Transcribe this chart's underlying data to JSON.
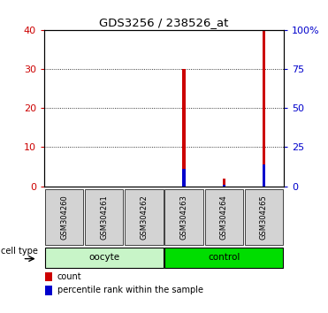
{
  "title": "GDS3256 / 238526_at",
  "samples": [
    "GSM304260",
    "GSM304261",
    "GSM304262",
    "GSM304263",
    "GSM304264",
    "GSM304265"
  ],
  "count_values": [
    0,
    0,
    0,
    30,
    2,
    40
  ],
  "percentile_values": [
    0,
    0,
    0,
    11,
    1,
    14
  ],
  "ylim_left": [
    0,
    40
  ],
  "ylim_right": [
    0,
    100
  ],
  "yticks_left": [
    0,
    10,
    20,
    30,
    40
  ],
  "yticks_right": [
    0,
    25,
    50,
    75,
    100
  ],
  "yticklabels_right": [
    "0",
    "25",
    "50",
    "75",
    "100%"
  ],
  "groups": [
    {
      "label": "oocyte",
      "indices": [
        0,
        1,
        2
      ],
      "light_color": "#c8f5c8",
      "dark_color": "#00cc00"
    },
    {
      "label": "control",
      "indices": [
        3,
        4,
        5
      ],
      "light_color": "#c8f5c8",
      "dark_color": "#00cc00"
    }
  ],
  "bar_width": 0.07,
  "count_color": "#cc0000",
  "percentile_color": "#0000cc",
  "left_tick_color": "#cc0000",
  "right_tick_color": "#0000cc",
  "cell_type_label": "cell type",
  "legend_count_label": "count",
  "legend_percentile_label": "percentile rank within the sample",
  "bg_color": "#ffffff",
  "sample_box_color": "#d3d3d3",
  "oocyte_color": "#c8f5c8",
  "control_color": "#00dd00",
  "group_border_color": "#000000"
}
